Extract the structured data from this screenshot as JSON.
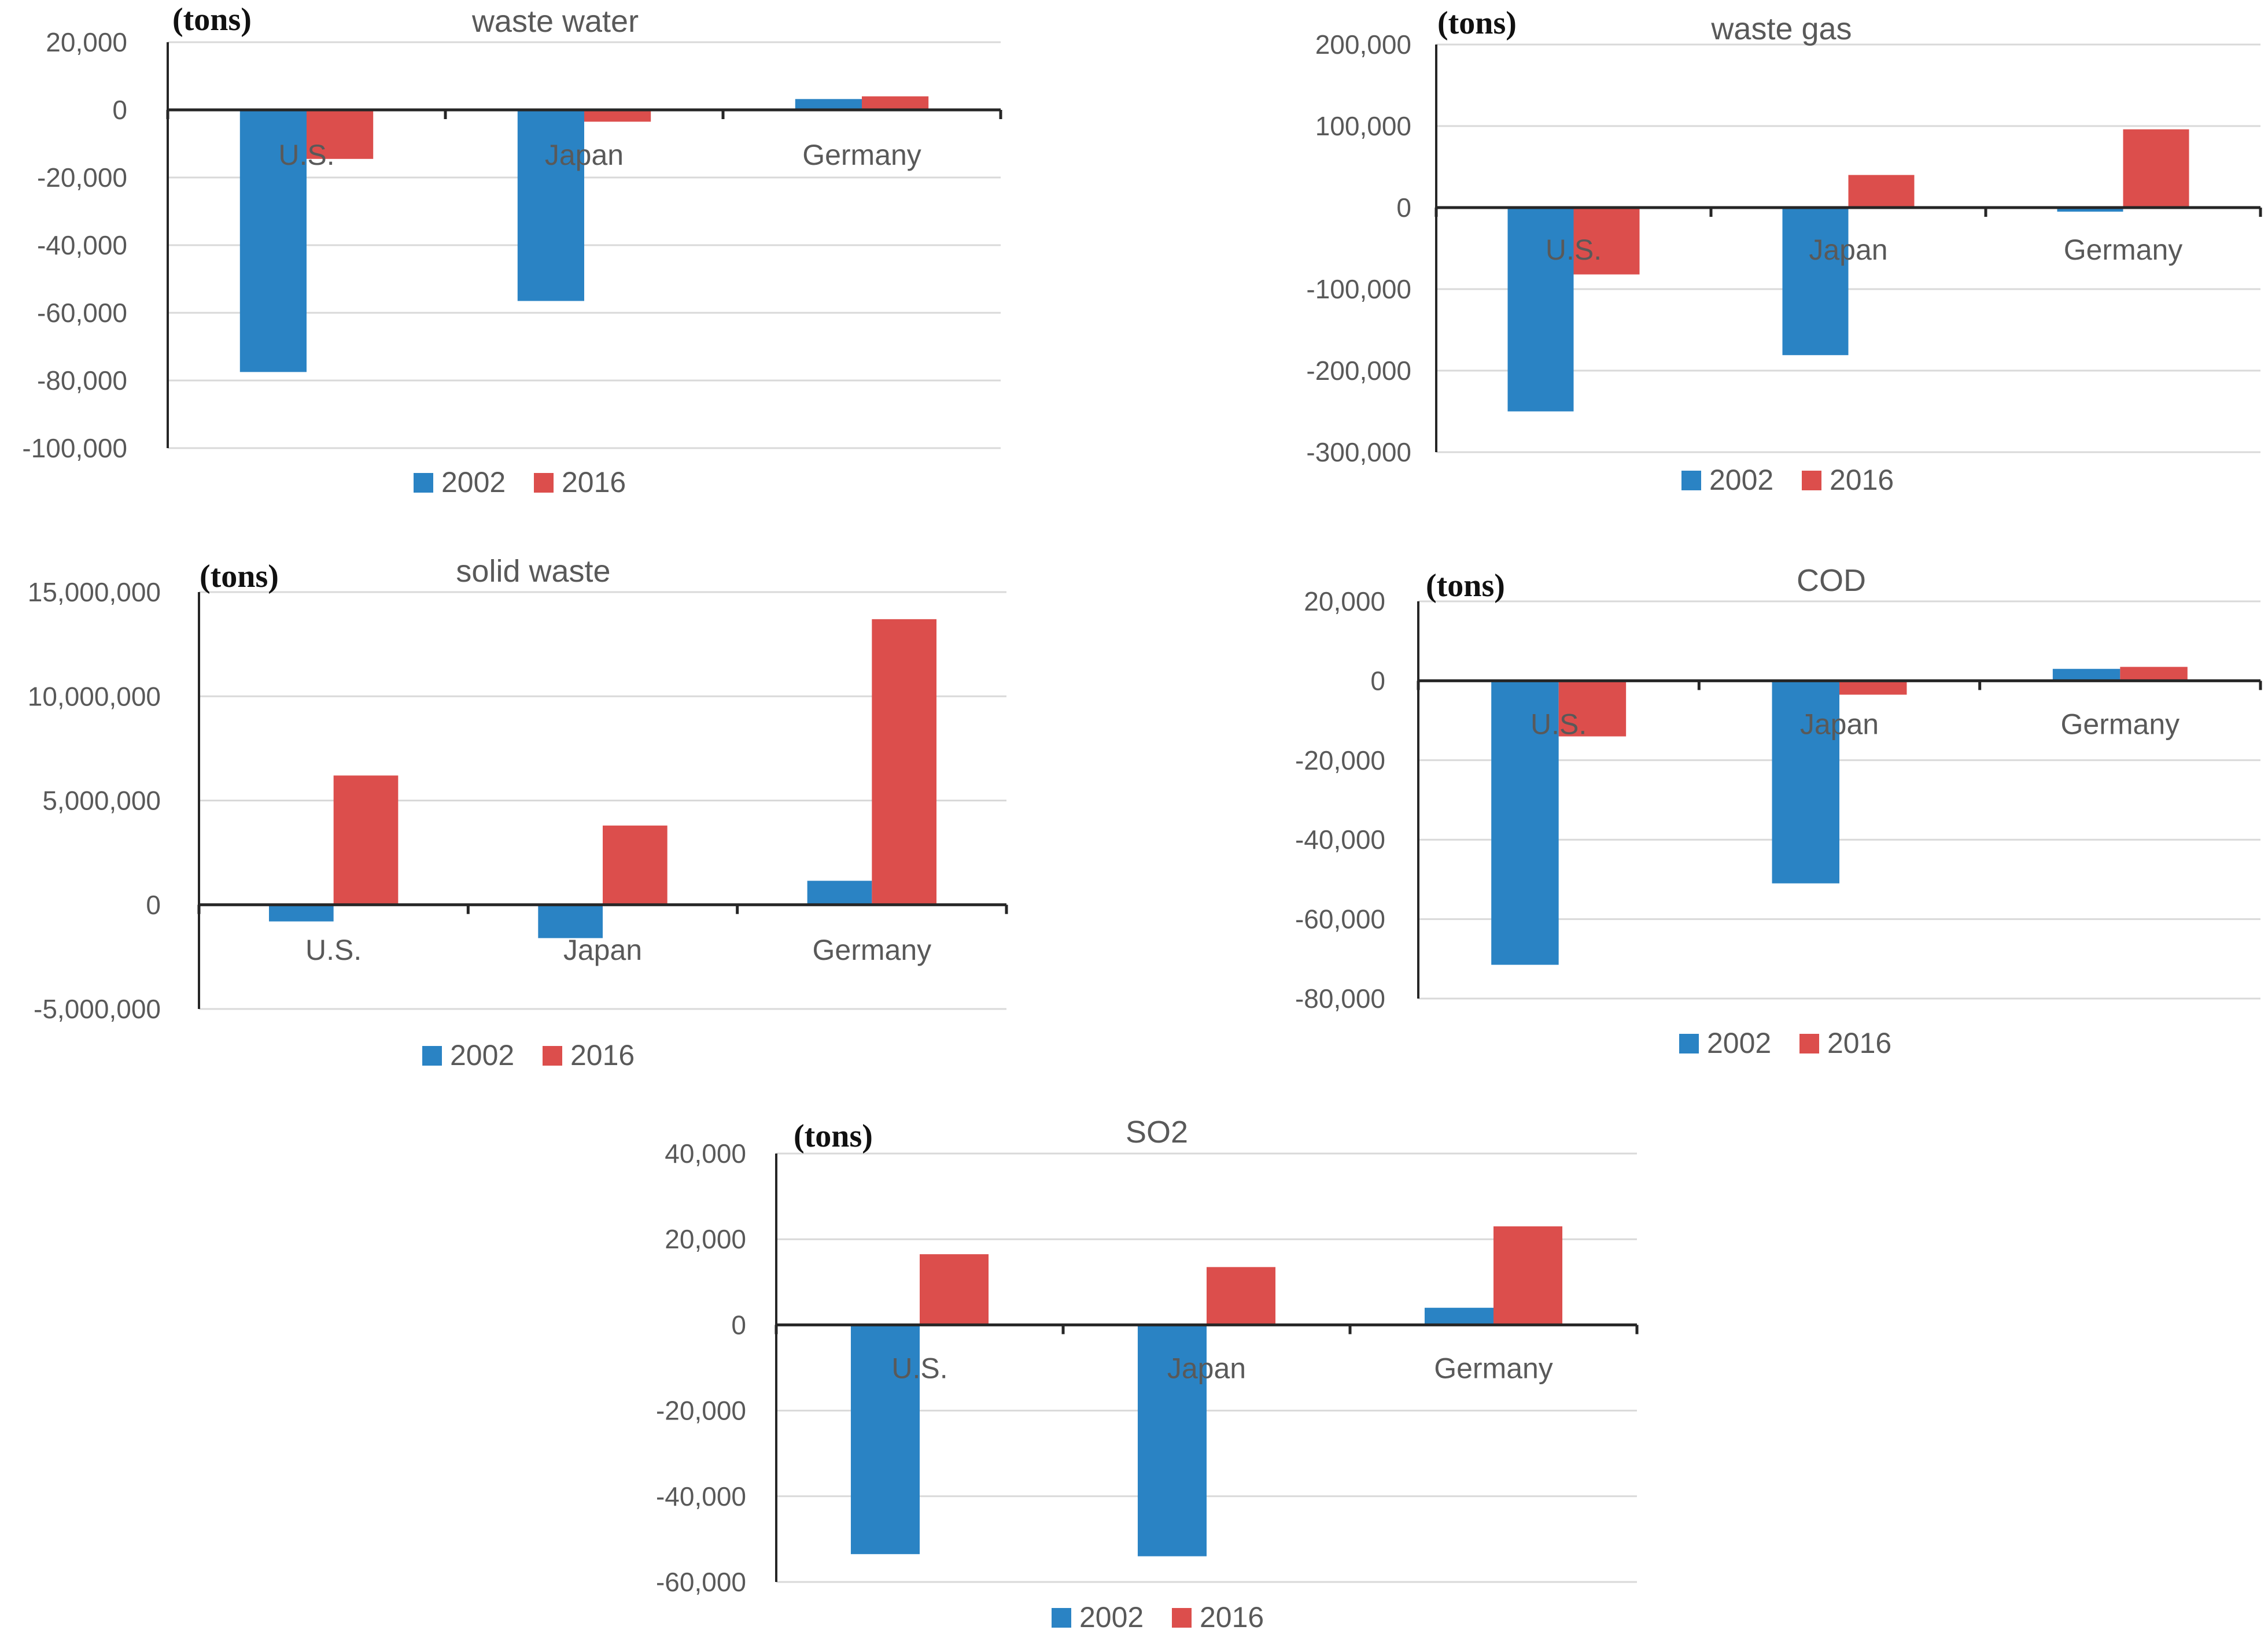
{
  "colors": {
    "series_2002": "#2a83c4",
    "series_2016": "#dc4e4c"
  },
  "chart_data": [
    {
      "type": "bar",
      "title": "waste water",
      "ylabel": "(tons)",
      "categories": [
        "U.S.",
        "Japan",
        "Germany"
      ],
      "series": [
        {
          "name": "2002",
          "values": [
            -77500,
            -56500,
            3200
          ]
        },
        {
          "name": "2016",
          "values": [
            -14500,
            -3500,
            4000
          ]
        }
      ],
      "ylim": [
        -100000,
        20000
      ],
      "yticks": [
        20000,
        0,
        -20000,
        -40000,
        -60000,
        -80000,
        -100000
      ],
      "ytick_labels": [
        "20,000",
        "0",
        "-20,000",
        "-40,000",
        "-60,000",
        "-80,000",
        "-100,000"
      ],
      "grid": true,
      "legend": "bottom"
    },
    {
      "type": "bar",
      "title": "waste gas",
      "ylabel": "(tons)",
      "categories": [
        "U.S.",
        "Japan",
        "Germany"
      ],
      "series": [
        {
          "name": "2002",
          "values": [
            -250000,
            -181000,
            -5000
          ]
        },
        {
          "name": "2016",
          "values": [
            -82000,
            40000,
            96000
          ]
        }
      ],
      "ylim": [
        -300000,
        200000
      ],
      "yticks": [
        200000,
        100000,
        0,
        -100000,
        -200000,
        -300000
      ],
      "ytick_labels": [
        "200,000",
        "100,000",
        "0",
        "-100,000",
        "-200,000",
        "-300,000"
      ],
      "grid": true,
      "legend": "bottom"
    },
    {
      "type": "bar",
      "title": "solid waste",
      "ylabel": "(tons)",
      "categories": [
        "U.S.",
        "Japan",
        "Germany"
      ],
      "series": [
        {
          "name": "2002",
          "values": [
            -800000,
            -1600000,
            1150000
          ]
        },
        {
          "name": "2016",
          "values": [
            6200000,
            3800000,
            13700000
          ]
        }
      ],
      "ylim": [
        -5000000,
        15000000
      ],
      "yticks": [
        15000000,
        10000000,
        5000000,
        0,
        -5000000
      ],
      "ytick_labels": [
        "15,000,000",
        "10,000,000",
        "5,000,000",
        "0",
        "-5,000,000"
      ],
      "grid": true,
      "legend": "bottom"
    },
    {
      "type": "bar",
      "title": "COD",
      "ylabel": "(tons)",
      "categories": [
        "U.S.",
        "Japan",
        "Germany"
      ],
      "series": [
        {
          "name": "2002",
          "values": [
            -71500,
            -51000,
            3000
          ]
        },
        {
          "name": "2016",
          "values": [
            -14000,
            -3500,
            3500
          ]
        }
      ],
      "ylim": [
        -80000,
        20000
      ],
      "yticks": [
        20000,
        0,
        -20000,
        -40000,
        -60000,
        -80000
      ],
      "ytick_labels": [
        "20,000",
        "0",
        "-20,000",
        "-40,000",
        "-60,000",
        "-80,000"
      ],
      "grid": true,
      "legend": "bottom"
    },
    {
      "type": "bar",
      "title": "SO2",
      "ylabel": "(tons)",
      "categories": [
        "U.S.",
        "Japan",
        "Germany"
      ],
      "series": [
        {
          "name": "2002",
          "values": [
            -53500,
            -54000,
            4000
          ]
        },
        {
          "name": "2016",
          "values": [
            16500,
            13500,
            23000
          ]
        }
      ],
      "ylim": [
        -60000,
        40000
      ],
      "yticks": [
        40000,
        20000,
        0,
        -20000,
        -40000,
        -60000
      ],
      "ytick_labels": [
        "40,000",
        "20,000",
        "0",
        "-20,000",
        "-40,000",
        "-60,000"
      ],
      "grid": true,
      "legend": "bottom"
    }
  ]
}
